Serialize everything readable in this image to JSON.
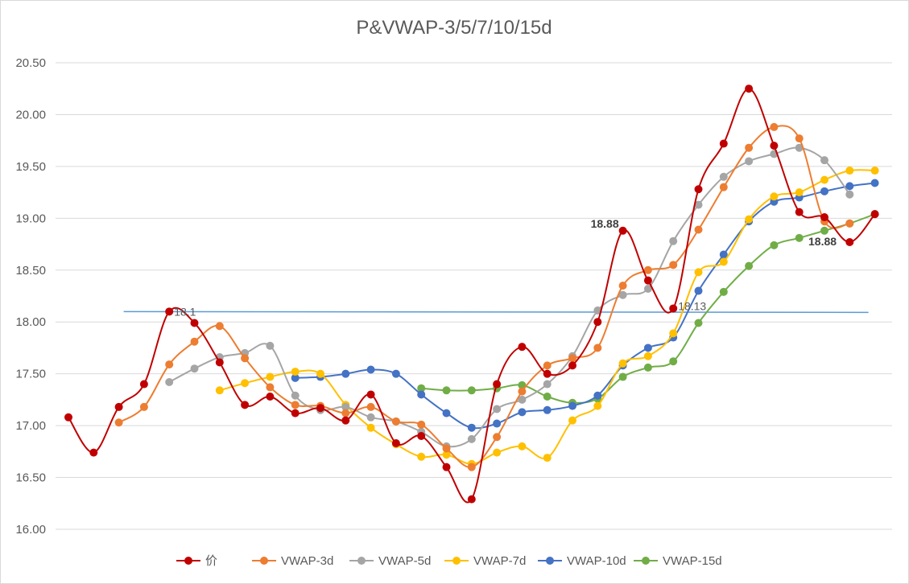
{
  "chart_data": {
    "type": "line",
    "title": "P&VWAP-3/5/7/10/15d",
    "xlabel": "",
    "ylabel": "",
    "ylim": [
      16.0,
      20.5
    ],
    "yticks": [
      "16.00",
      "16.50",
      "17.00",
      "17.50",
      "18.00",
      "18.50",
      "19.00",
      "19.50",
      "20.00",
      "20.50"
    ],
    "grid": true,
    "legend": "bottom",
    "x_count": 33,
    "series": [
      {
        "name": "价",
        "color": "#c00000",
        "start": 0,
        "values": [
          17.08,
          16.74,
          17.18,
          17.4,
          18.1,
          17.99,
          17.61,
          17.2,
          17.28,
          17.12,
          17.17,
          17.05,
          17.3,
          16.83,
          16.9,
          16.6,
          16.29,
          17.4,
          17.76,
          17.5,
          17.58,
          18.0,
          18.88,
          18.4,
          18.13,
          19.28,
          19.72,
          20.25,
          19.7,
          19.06,
          19.01,
          18.77,
          19.04
        ]
      },
      {
        "name": "VWAP-3d",
        "color": "#ed7d31",
        "start": 2,
        "values": [
          17.03,
          17.18,
          17.59,
          17.81,
          17.96,
          17.65,
          17.37,
          17.2,
          17.19,
          17.12,
          17.18,
          17.04,
          17.01,
          16.78,
          16.6,
          16.89,
          17.33,
          17.58,
          17.65,
          17.75,
          18.35,
          18.5,
          18.55,
          18.89,
          19.3,
          19.68,
          19.88,
          19.77,
          18.97,
          18.95
        ]
      },
      {
        "name": "VWAP-5d",
        "color": "#a5a5a5",
        "start": 4,
        "values": [
          17.42,
          17.55,
          17.66,
          17.7,
          17.77,
          17.29,
          17.15,
          17.18,
          17.08,
          17.04,
          16.94,
          16.8,
          16.87,
          17.16,
          17.25,
          17.4,
          17.67,
          18.11,
          18.26,
          18.32,
          18.78,
          19.13,
          19.4,
          19.55,
          19.62,
          19.68,
          19.56,
          19.23
        ]
      },
      {
        "name": "VWAP-7d",
        "color": "#ffc000",
        "start": 6,
        "values": [
          17.34,
          17.41,
          17.47,
          17.52,
          17.5,
          17.2,
          16.98,
          16.82,
          16.7,
          16.72,
          16.63,
          16.74,
          16.8,
          16.69,
          17.05,
          17.19,
          17.6,
          17.67,
          17.89,
          18.48,
          18.58,
          18.99,
          19.21,
          19.25,
          19.37,
          19.46,
          19.46
        ]
      },
      {
        "name": "VWAP-10d",
        "color": "#4472c4",
        "start": 9,
        "values": [
          17.46,
          17.47,
          17.5,
          17.54,
          17.5,
          17.3,
          17.12,
          16.98,
          17.02,
          17.13,
          17.15,
          17.19,
          17.29,
          17.58,
          17.75,
          17.85,
          18.3,
          18.65,
          18.97,
          19.16,
          19.2,
          19.26,
          19.31,
          19.34
        ]
      },
      {
        "name": "VWAP-15d",
        "color": "#70ad47",
        "start": 14,
        "values": [
          17.36,
          17.34,
          17.34,
          17.36,
          17.39,
          17.28,
          17.22,
          17.26,
          17.47,
          17.56,
          17.62,
          17.99,
          18.29,
          18.54,
          18.74,
          18.81,
          18.88,
          18.95,
          19.04
        ]
      }
    ],
    "reference_line": {
      "value": 18.1,
      "color": "#5b9bd5",
      "from_index": 2,
      "to_index": 32
    },
    "annotations": [
      {
        "text": "18.1",
        "index": 4,
        "value": 18.1,
        "color": "#595959",
        "bold": false
      },
      {
        "text": "18.88",
        "index": 22,
        "value": 18.88,
        "color": "#404040",
        "bold": true
      },
      {
        "text": "18.13",
        "index": 24,
        "value": 18.13,
        "color": "#595959",
        "bold": false
      },
      {
        "text": "18.88",
        "index": 30,
        "value": 18.88,
        "color": "#404040",
        "bold": true
      }
    ]
  }
}
